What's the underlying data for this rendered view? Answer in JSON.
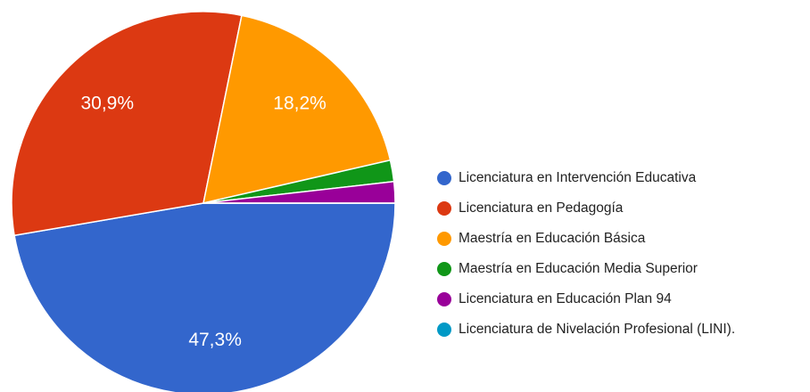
{
  "chart_data": {
    "type": "pie",
    "categories": [
      "Licenciatura en Intervención Educativa",
      "Licenciatura en Pedagogía",
      "Maestría en Educación Básica",
      "Maestría en Educación Media Superior",
      "Licenciatura en Educación Plan 94",
      "Licenciatura de Nivelación Profesional (LINI)."
    ],
    "values": [
      47.3,
      30.9,
      18.2,
      1.8,
      1.8,
      0
    ],
    "value_labels": [
      "47,3%",
      "30,9%",
      "18,2%",
      null,
      null,
      null
    ],
    "colors": [
      "#3366cc",
      "#dc3912",
      "#ff9900",
      "#109618",
      "#990099",
      "#0099c6"
    ],
    "legend": "right"
  }
}
